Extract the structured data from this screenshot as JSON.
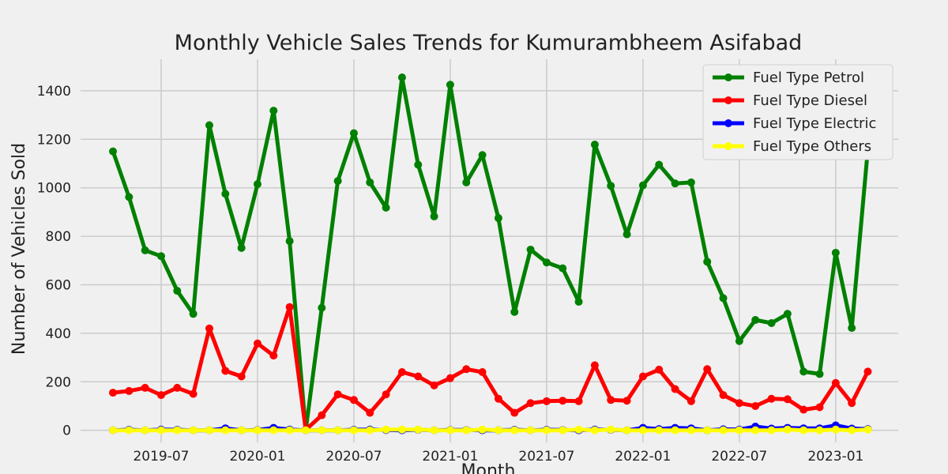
{
  "chart_data": {
    "type": "line",
    "title": "Monthly Vehicle Sales Trends for Kumurambheem Asifabad",
    "xlabel": "Month",
    "ylabel": "Number of Vehicles Sold",
    "x_tick_labels": [
      "2019-07",
      "2020-01",
      "2020-07",
      "2021-01",
      "2021-07",
      "2022-01",
      "2022-07",
      "2023-01"
    ],
    "y_ticks": [
      0,
      200,
      400,
      600,
      800,
      1000,
      1200,
      1400
    ],
    "ylim": [
      -50,
      1530
    ],
    "grid": true,
    "legend_position": "top-right",
    "x": [
      "2019-04",
      "2019-05",
      "2019-06",
      "2019-07",
      "2019-08",
      "2019-09",
      "2019-10",
      "2019-11",
      "2019-12",
      "2020-01",
      "2020-02",
      "2020-03",
      "2020-04",
      "2020-05",
      "2020-06",
      "2020-07",
      "2020-08",
      "2020-09",
      "2020-10",
      "2020-11",
      "2020-12",
      "2021-01",
      "2021-02",
      "2021-03",
      "2021-04",
      "2021-05",
      "2021-06",
      "2021-07",
      "2021-08",
      "2021-09",
      "2021-10",
      "2021-11",
      "2021-12",
      "2022-01",
      "2022-02",
      "2022-03",
      "2022-04",
      "2022-05",
      "2022-06",
      "2022-07",
      "2022-08",
      "2022-09",
      "2022-10",
      "2022-11",
      "2022-12",
      "2023-01",
      "2023-02",
      "2023-03"
    ],
    "series": [
      {
        "name": "Fuel Type Petrol",
        "color": "#008000",
        "values": [
          1150,
          962,
          742,
          718,
          575,
          480,
          1258,
          975,
          752,
          1015,
          1318,
          780,
          0,
          505,
          1028,
          1225,
          1022,
          918,
          1455,
          1095,
          882,
          1425,
          1022,
          1135,
          875,
          488,
          745,
          692,
          668,
          530,
          1178,
          1008,
          808,
          1010,
          1095,
          1018,
          1022,
          695,
          545,
          368,
          455,
          442,
          480,
          242,
          232,
          732,
          422,
          1158
        ]
      },
      {
        "name": "Fuel Type Diesel",
        "color": "#ff0000",
        "values": [
          155,
          162,
          175,
          145,
          175,
          150,
          420,
          245,
          222,
          358,
          308,
          508,
          2,
          62,
          148,
          125,
          72,
          148,
          240,
          222,
          185,
          215,
          252,
          240,
          130,
          72,
          112,
          120,
          122,
          120,
          268,
          125,
          122,
          222,
          250,
          170,
          120,
          252,
          145,
          112,
          100,
          130,
          128,
          85,
          95,
          195,
          112,
          242
        ]
      },
      {
        "name": "Fuel Type Electric",
        "color": "#0000ff",
        "values": [
          0,
          2,
          0,
          3,
          2,
          0,
          0,
          8,
          0,
          1,
          10,
          3,
          0,
          0,
          0,
          2,
          3,
          1,
          0,
          2,
          0,
          1,
          1,
          0,
          0,
          2,
          0,
          2,
          1,
          0,
          3,
          2,
          0,
          10,
          5,
          10,
          8,
          0,
          4,
          3,
          15,
          7,
          10,
          8,
          8,
          20,
          7,
          5
        ]
      },
      {
        "name": "Fuel Type Others",
        "color": "#ffff00",
        "values": [
          0,
          0,
          0,
          0,
          0,
          0,
          0,
          0,
          0,
          0,
          0,
          0,
          0,
          0,
          0,
          0,
          0,
          3,
          3,
          3,
          0,
          0,
          0,
          3,
          0,
          0,
          0,
          0,
          0,
          3,
          0,
          3,
          0,
          0,
          0,
          0,
          0,
          0,
          0,
          0,
          0,
          0,
          3,
          0,
          0,
          3,
          0,
          3
        ]
      }
    ]
  }
}
